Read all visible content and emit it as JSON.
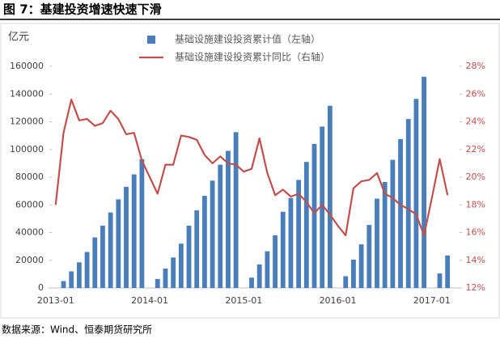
{
  "title": "图 7：基建投资增速快速下滑",
  "source": "数据来源：Wind、恒泰期货研究所",
  "chart_data": {
    "type": "bar_line",
    "y_axis_label": "亿元",
    "categories": [
      "2013-01",
      null,
      null,
      null,
      null,
      null,
      null,
      null,
      null,
      null,
      null,
      null,
      "2014-01",
      null,
      null,
      null,
      null,
      null,
      null,
      null,
      null,
      null,
      null,
      null,
      "2015-01",
      null,
      null,
      null,
      null,
      null,
      null,
      null,
      null,
      null,
      null,
      null,
      "2016-01",
      null,
      null,
      null,
      null,
      null,
      null,
      null,
      null,
      null,
      null,
      null,
      "2017-01",
      null,
      null
    ],
    "series": [
      {
        "name": "基础设施建设投资累计值（左轴）",
        "type": "bar",
        "color": "#4a7ebb",
        "values": [
          null,
          5000,
          12000,
          18500,
          26000,
          36500,
          45000,
          54500,
          64000,
          73000,
          82000,
          93000,
          null,
          6500,
          14000,
          22000,
          32000,
          45000,
          56000,
          66500,
          77500,
          89000,
          99000,
          112500,
          null,
          7500,
          17000,
          26500,
          38000,
          55000,
          65000,
          78000,
          91000,
          104000,
          116500,
          131500,
          null,
          8500,
          20500,
          31500,
          45500,
          64500,
          76500,
          92500,
          107500,
          122000,
          136500,
          152500,
          null,
          10500,
          23500
        ]
      },
      {
        "name": "基础设施建设投资累计同比（右轴）",
        "type": "line",
        "axis": "y2",
        "color": "#c0504d",
        "values": [
          18.0,
          23.2,
          25.6,
          24.1,
          24.2,
          23.7,
          23.9,
          24.8,
          24.2,
          23.1,
          23.2,
          21.2,
          20.0,
          18.8,
          20.9,
          20.9,
          23.0,
          22.9,
          22.7,
          21.6,
          21.0,
          21.5,
          21.0,
          20.9,
          20.4,
          20.6,
          22.8,
          20.3,
          18.7,
          19.1,
          18.6,
          18.8,
          18.2,
          17.4,
          18.0,
          17.3,
          16.5,
          15.8,
          19.2,
          19.7,
          19.8,
          20.3,
          18.8,
          18.5,
          18.0,
          17.7,
          17.3,
          15.8,
          18.5,
          21.3,
          18.7
        ]
      }
    ],
    "ylim": [
      0,
      160000
    ],
    "yticks": [
      0,
      20000,
      40000,
      60000,
      80000,
      100000,
      120000,
      140000,
      160000
    ],
    "y2lim": [
      12,
      28
    ],
    "y2ticks": [
      {
        "value": 12,
        "label": "12%"
      },
      {
        "value": 14,
        "label": "14%"
      },
      {
        "value": 16,
        "label": "16%"
      },
      {
        "value": 18,
        "label": "18%"
      },
      {
        "value": 20,
        "label": "20%"
      },
      {
        "value": 22,
        "label": "22%"
      },
      {
        "value": 24,
        "label": "24%"
      },
      {
        "value": 26,
        "label": "26%"
      },
      {
        "value": 28,
        "label": "28%"
      }
    ],
    "grid": false
  }
}
